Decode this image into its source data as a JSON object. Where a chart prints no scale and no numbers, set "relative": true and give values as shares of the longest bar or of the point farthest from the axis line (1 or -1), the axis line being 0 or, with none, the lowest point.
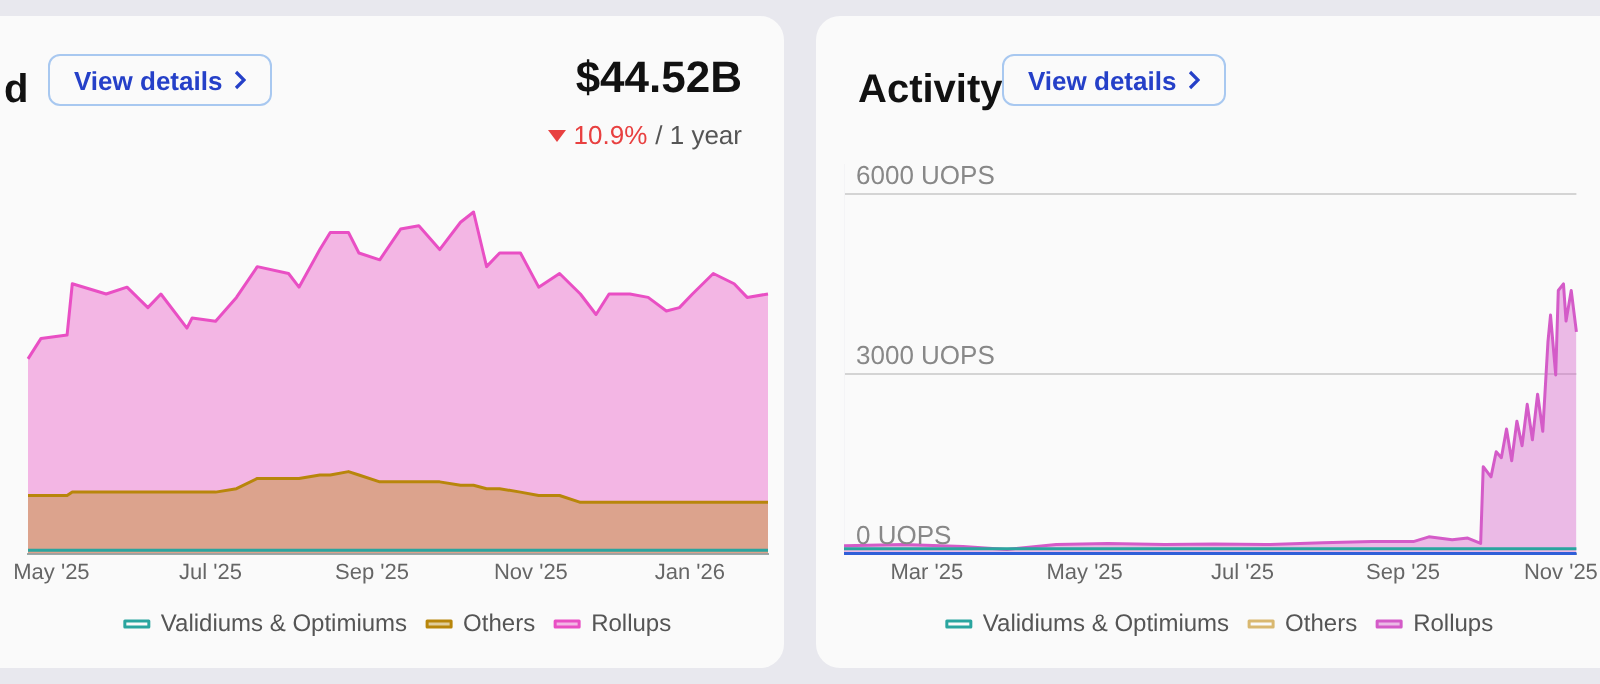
{
  "chart_data": [
    {
      "type": "area",
      "title": "d",
      "annotations": [
        "View details",
        "$44.52B",
        "10.9%",
        "/ 1 year"
      ],
      "relative": true,
      "legend": "bottom",
      "marker": "none",
      "x": [
        "2025-04-22",
        "2025-04-27",
        "2025-05-07",
        "2025-05-09",
        "2025-05-22",
        "2025-05-30",
        "2025-06-07",
        "2025-06-12",
        "2025-06-22",
        "2025-06-24",
        "2025-07-03",
        "2025-07-11",
        "2025-07-19",
        "2025-07-31",
        "2025-08-04",
        "2025-08-12",
        "2025-08-16",
        "2025-08-23",
        "2025-08-27",
        "2025-09-04",
        "2025-09-12",
        "2025-09-19",
        "2025-09-27",
        "2025-10-05",
        "2025-10-10",
        "2025-10-15",
        "2025-10-20",
        "2025-10-28",
        "2025-11-04",
        "2025-11-12",
        "2025-11-20",
        "2025-11-26",
        "2025-12-01",
        "2025-12-09",
        "2025-12-16",
        "2025-12-23",
        "2025-12-28",
        "2026-01-02",
        "2026-01-10",
        "2026-01-18",
        "2026-01-23",
        "2026-01-31"
      ],
      "xlim": [
        "2025-04-22",
        "2026-01-31"
      ],
      "xticks": [
        {
          "value": "2025-05-01",
          "label": "May '25"
        },
        {
          "value": "2025-07-01",
          "label": "Jul '25"
        },
        {
          "value": "2025-09-01",
          "label": "Sep '25"
        },
        {
          "value": "2025-11-01",
          "label": "Nov '25"
        },
        {
          "value": "2026-01-01",
          "label": "Jan '26"
        }
      ],
      "series": [
        {
          "name": "Rollups",
          "color": "#e94fc4",
          "values": [
            0.57,
            0.63,
            0.64,
            0.79,
            0.76,
            0.78,
            0.72,
            0.76,
            0.66,
            0.69,
            0.68,
            0.75,
            0.84,
            0.82,
            0.78,
            0.89,
            0.94,
            0.94,
            0.88,
            0.86,
            0.95,
            0.96,
            0.89,
            0.97,
            1,
            0.84,
            0.88,
            0.88,
            0.78,
            0.82,
            0.76,
            0.7,
            0.76,
            0.76,
            0.75,
            0.71,
            0.72,
            0.76,
            0.82,
            0.79,
            0.75,
            0.76
          ]
        },
        {
          "name": "Validiums & Optimiums",
          "color": "#2aa59f",
          "type": "line",
          "values": [
            0.01,
            0.01,
            0.01,
            0.01,
            0.01,
            0.01,
            0.01,
            0.01,
            0.01,
            0.01,
            0.01,
            0.01,
            0.01,
            0.01,
            0.01,
            0.01,
            0.01,
            0.01,
            0.01,
            0.01,
            0.01,
            0.01,
            0.01,
            0.01,
            0.01,
            0.01,
            0.01,
            0.01,
            0.01,
            0.01,
            0.01,
            0.01,
            0.01,
            0.01,
            0.01,
            0.01,
            0.01,
            0.01,
            0.01,
            0.01,
            0.01,
            0.01
          ]
        },
        {
          "name": "Others",
          "color": "#b8860b",
          "values": [
            0.17,
            0.17,
            0.17,
            0.18,
            0.18,
            0.18,
            0.18,
            0.18,
            0.18,
            0.18,
            0.18,
            0.19,
            0.22,
            0.22,
            0.22,
            0.23,
            0.23,
            0.24,
            0.23,
            0.21,
            0.21,
            0.21,
            0.21,
            0.2,
            0.2,
            0.19,
            0.19,
            0.18,
            0.17,
            0.17,
            0.15,
            0.15,
            0.15,
            0.15,
            0.15,
            0.15,
            0.15,
            0.15,
            0.15,
            0.15,
            0.15,
            0.15
          ]
        }
      ]
    },
    {
      "type": "line",
      "title": "Activity",
      "annotations": [
        "View details"
      ],
      "legend": "bottom",
      "marker": "none",
      "grid": "y",
      "xlim": [
        "2025-01-28",
        "2025-11-07"
      ],
      "xticks": [
        {
          "value": "2025-03-01",
          "label": "Mar '25"
        },
        {
          "value": "2025-05-01",
          "label": "May '25"
        },
        {
          "value": "2025-07-01",
          "label": "Jul '25"
        },
        {
          "value": "2025-09-01",
          "label": "Sep '25"
        },
        {
          "value": "2025-11-01",
          "label": "Nov '25"
        }
      ],
      "ylim": [
        0,
        6500
      ],
      "yticks": [
        {
          "value": 0,
          "label": "0 UOPS"
        },
        {
          "value": 3000,
          "label": "3000 UOPS"
        },
        {
          "value": 6000,
          "label": "6000 UOPS"
        }
      ],
      "series": [
        {
          "name": "Rollups",
          "color": "#d45bc8",
          "type": "area",
          "x": [
            "2025-01-28",
            "2025-02-20",
            "2025-03-15",
            "2025-04-01",
            "2025-04-20",
            "2025-05-10",
            "2025-06-01",
            "2025-06-20",
            "2025-07-10",
            "2025-08-01",
            "2025-08-20",
            "2025-09-05",
            "2025-09-11",
            "2025-09-20",
            "2025-09-26",
            "2025-10-01",
            "2025-10-02",
            "2025-10-05",
            "2025-10-07",
            "2025-10-09",
            "2025-10-11",
            "2025-10-13",
            "2025-10-15",
            "2025-10-17",
            "2025-10-19",
            "2025-10-21",
            "2025-10-23",
            "2025-10-25",
            "2025-10-27",
            "2025-10-28",
            "2025-10-30",
            "2025-10-31",
            "2025-11-02",
            "2025-11-03",
            "2025-11-05",
            "2025-11-07"
          ],
          "values": [
            130,
            150,
            120,
            70,
            150,
            170,
            150,
            160,
            150,
            180,
            200,
            200,
            280,
            230,
            260,
            170,
            1450,
            1280,
            1700,
            1600,
            2080,
            1550,
            2210,
            1800,
            2490,
            1900,
            2660,
            2040,
            3530,
            3980,
            2980,
            4390,
            4500,
            3880,
            4390,
            3700
          ]
        },
        {
          "name": "Validiums & Optimiums",
          "color": "#2aa59f",
          "x": [
            "2025-01-28",
            "2025-11-07"
          ],
          "values": [
            80,
            80
          ]
        },
        {
          "name": "Others",
          "color": "#d9b870"
        },
        {
          "color": "#2f5fd8",
          "x": [
            "2025-01-28",
            "2025-11-07"
          ],
          "values": [
            0,
            0
          ]
        }
      ]
    }
  ]
}
